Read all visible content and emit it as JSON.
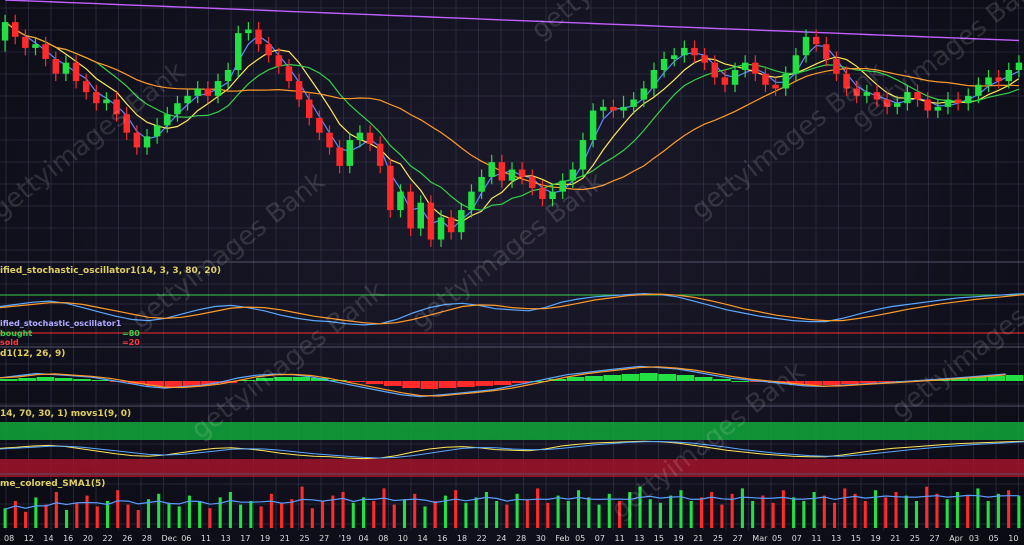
{
  "colors": {
    "up": "#22e044",
    "down": "#ff2a2a",
    "grid": "#3a3850",
    "ma_fast": "#5b8cff",
    "ma_mid": "#ffe75a",
    "ma_green": "#36d04a",
    "ma_orange": "#ff9a2a",
    "ma_purple": "#c060ff",
    "stoch_k": "#5aa8ff",
    "stoch_d": "#ff9a2a",
    "ob_line": "#36d04a",
    "os_line": "#ff2a2a",
    "macd_up": "#22e044",
    "macd_down": "#ff2a2a",
    "vol": "#5a9cff"
  },
  "panels": {
    "stochastic": {
      "title": "ified_stochastic_oscillator1(14, 3, 3, 80, 20)",
      "sub_label": "ified_stochastic_oscillator1",
      "overbought_label": "bought",
      "oversold_label": "sold",
      "ob_value": "=80",
      "os_value": "=20"
    },
    "macd": {
      "title": "d1(12, 26, 9)"
    },
    "band": {
      "title": "14, 70, 30, 1) movs1(9, 0)"
    },
    "volume": {
      "title": "me_colored_SMA1(5)"
    }
  },
  "watermark": "gettyimages Bank",
  "chart_data": {
    "type": "candlestick",
    "x_tick_labels": [
      "08",
      "12",
      "14",
      "16",
      "20",
      "22",
      "26",
      "28",
      "Dec",
      "06",
      "11",
      "13",
      "17",
      "19",
      "21",
      "25",
      "27",
      "'19",
      "04",
      "08",
      "10",
      "14",
      "16",
      "18",
      "22",
      "24",
      "28",
      "30",
      "Feb",
      "05",
      "07",
      "11",
      "13",
      "15",
      "19",
      "21",
      "25",
      "27",
      "Mar",
      "05",
      "07",
      "11",
      "13",
      "15",
      "19",
      "21",
      "25",
      "27",
      "Apr",
      "03",
      "05",
      "10"
    ],
    "candles": [
      [
        78,
        88,
        72,
        92
      ],
      [
        88,
        80,
        76,
        92
      ],
      [
        80,
        74,
        70,
        84
      ],
      [
        74,
        76,
        70,
        80
      ],
      [
        76,
        68,
        64,
        80
      ],
      [
        68,
        60,
        56,
        72
      ],
      [
        60,
        66,
        56,
        70
      ],
      [
        66,
        56,
        52,
        70
      ],
      [
        56,
        50,
        46,
        60
      ],
      [
        50,
        44,
        40,
        54
      ],
      [
        44,
        46,
        40,
        50
      ],
      [
        46,
        38,
        34,
        50
      ],
      [
        38,
        28,
        24,
        42
      ],
      [
        28,
        20,
        16,
        32
      ],
      [
        20,
        26,
        16,
        30
      ],
      [
        26,
        32,
        22,
        36
      ],
      [
        32,
        38,
        28,
        42
      ],
      [
        38,
        44,
        34,
        48
      ],
      [
        44,
        48,
        40,
        52
      ],
      [
        48,
        52,
        44,
        56
      ],
      [
        52,
        48,
        44,
        56
      ],
      [
        48,
        56,
        44,
        60
      ],
      [
        56,
        62,
        52,
        66
      ],
      [
        62,
        82,
        58,
        86
      ],
      [
        82,
        84,
        78,
        88
      ],
      [
        84,
        76,
        72,
        88
      ],
      [
        76,
        70,
        66,
        80
      ],
      [
        70,
        64,
        60,
        74
      ],
      [
        64,
        56,
        52,
        68
      ],
      [
        56,
        46,
        42,
        60
      ],
      [
        46,
        36,
        32,
        50
      ],
      [
        36,
        28,
        24,
        40
      ],
      [
        28,
        20,
        16,
        32
      ],
      [
        20,
        10,
        6,
        24
      ],
      [
        10,
        24,
        6,
        28
      ],
      [
        24,
        28,
        20,
        32
      ],
      [
        28,
        22,
        18,
        32
      ],
      [
        22,
        10,
        6,
        26
      ],
      [
        10,
        -14,
        -18,
        14
      ],
      [
        -14,
        -4,
        -18,
        0
      ],
      [
        -4,
        -24,
        -28,
        0
      ],
      [
        -24,
        -10,
        -28,
        -6
      ],
      [
        -10,
        -30,
        -34,
        -6
      ],
      [
        -30,
        -18,
        -34,
        -14
      ],
      [
        -18,
        -26,
        -30,
        -14
      ],
      [
        -26,
        -14,
        -30,
        -10
      ],
      [
        -14,
        -4,
        -18,
        0
      ],
      [
        -4,
        4,
        -8,
        8
      ],
      [
        4,
        12,
        0,
        16
      ],
      [
        12,
        2,
        -2,
        16
      ],
      [
        2,
        8,
        -2,
        12
      ],
      [
        8,
        4,
        0,
        12
      ],
      [
        4,
        -2,
        -6,
        8
      ],
      [
        -2,
        -8,
        -12,
        2
      ],
      [
        -8,
        -4,
        -12,
        0
      ],
      [
        -4,
        2,
        -8,
        6
      ],
      [
        2,
        8,
        -2,
        12
      ],
      [
        8,
        24,
        4,
        28
      ],
      [
        24,
        40,
        20,
        44
      ],
      [
        40,
        42,
        36,
        46
      ],
      [
        42,
        40,
        36,
        46
      ],
      [
        40,
        42,
        36,
        48
      ],
      [
        42,
        46,
        38,
        50
      ],
      [
        46,
        52,
        42,
        56
      ],
      [
        52,
        62,
        48,
        66
      ],
      [
        62,
        68,
        58,
        72
      ],
      [
        68,
        70,
        64,
        74
      ],
      [
        70,
        74,
        66,
        78
      ],
      [
        74,
        70,
        66,
        78
      ],
      [
        70,
        66,
        62,
        74
      ],
      [
        66,
        58,
        54,
        70
      ],
      [
        58,
        54,
        50,
        62
      ],
      [
        54,
        62,
        50,
        66
      ],
      [
        62,
        66,
        58,
        70
      ],
      [
        66,
        60,
        56,
        70
      ],
      [
        60,
        54,
        50,
        64
      ],
      [
        54,
        52,
        48,
        58
      ],
      [
        52,
        60,
        48,
        64
      ],
      [
        60,
        70,
        56,
        74
      ],
      [
        70,
        80,
        66,
        84
      ],
      [
        80,
        76,
        72,
        84
      ],
      [
        76,
        68,
        64,
        80
      ],
      [
        68,
        60,
        56,
        72
      ],
      [
        60,
        52,
        48,
        64
      ],
      [
        52,
        48,
        44,
        56
      ],
      [
        48,
        50,
        44,
        54
      ],
      [
        50,
        46,
        42,
        54
      ],
      [
        46,
        42,
        38,
        50
      ],
      [
        42,
        44,
        38,
        48
      ],
      [
        44,
        50,
        40,
        54
      ],
      [
        50,
        46,
        42,
        54
      ],
      [
        46,
        40,
        36,
        50
      ],
      [
        40,
        42,
        36,
        46
      ],
      [
        42,
        46,
        38,
        50
      ],
      [
        46,
        44,
        40,
        50
      ],
      [
        44,
        48,
        40,
        52
      ],
      [
        48,
        54,
        44,
        58
      ],
      [
        54,
        58,
        50,
        62
      ],
      [
        58,
        56,
        52,
        62
      ],
      [
        56,
        62,
        52,
        66
      ],
      [
        62,
        66,
        58,
        70
      ]
    ],
    "stoch_k": [
      62,
      66,
      70,
      72,
      68,
      60,
      52,
      44,
      38,
      36,
      40,
      48,
      56,
      62,
      64,
      60,
      54,
      46,
      40,
      36,
      34,
      30,
      28,
      30,
      38,
      50,
      60,
      66,
      68,
      64,
      58,
      56,
      54,
      60,
      70,
      76,
      80,
      82,
      84,
      86,
      84,
      80,
      72,
      64,
      56,
      50,
      44,
      40,
      36,
      34,
      34,
      40,
      48,
      56,
      62,
      66,
      70,
      74,
      78,
      80,
      82,
      84,
      86
    ],
    "stoch_d": [
      60,
      63,
      66,
      69,
      69,
      66,
      60,
      54,
      48,
      42,
      40,
      42,
      47,
      53,
      59,
      61,
      60,
      56,
      50,
      44,
      40,
      36,
      32,
      30,
      32,
      38,
      46,
      54,
      62,
      65,
      64,
      60,
      58,
      58,
      62,
      68,
      74,
      78,
      82,
      84,
      85,
      83,
      79,
      73,
      66,
      58,
      52,
      46,
      42,
      38,
      36,
      36,
      40,
      45,
      51,
      57,
      62,
      67,
      71,
      75,
      78,
      81,
      84
    ],
    "macd_hist": [
      4,
      6,
      8,
      6,
      4,
      2,
      -2,
      -6,
      -10,
      -12,
      -10,
      -8,
      -4,
      2,
      6,
      8,
      8,
      6,
      2,
      -2,
      -6,
      -10,
      -14,
      -16,
      -14,
      -12,
      -10,
      -8,
      -4,
      0,
      4,
      8,
      10,
      12,
      14,
      16,
      14,
      12,
      8,
      4,
      0,
      -2,
      -4,
      -6,
      -8,
      -8,
      -6,
      -4,
      -2,
      0,
      2,
      4,
      6,
      8,
      10,
      12
    ],
    "vol_pct": [
      22,
      30,
      18,
      34,
      26,
      40,
      20,
      28,
      36,
      24,
      30,
      42,
      26,
      20,
      32,
      38,
      28,
      24,
      36,
      30,
      22,
      34,
      40,
      26,
      30,
      24,
      38,
      28,
      32,
      46,
      22,
      30,
      36,
      40,
      28,
      34,
      30,
      44,
      26,
      32,
      38,
      24,
      30,
      36,
      42,
      28,
      34,
      40,
      30,
      26,
      38,
      32,
      44,
      28,
      36,
      30,
      42,
      34,
      26,
      38,
      30,
      40,
      46,
      32,
      28,
      36,
      42,
      30,
      34,
      40,
      26,
      38,
      44,
      30,
      36,
      28,
      42,
      34,
      30,
      40,
      36,
      28,
      44,
      38,
      30,
      42,
      34,
      40,
      36,
      30,
      46,
      38,
      32,
      40,
      36,
      44,
      30,
      38,
      42,
      36
    ]
  }
}
